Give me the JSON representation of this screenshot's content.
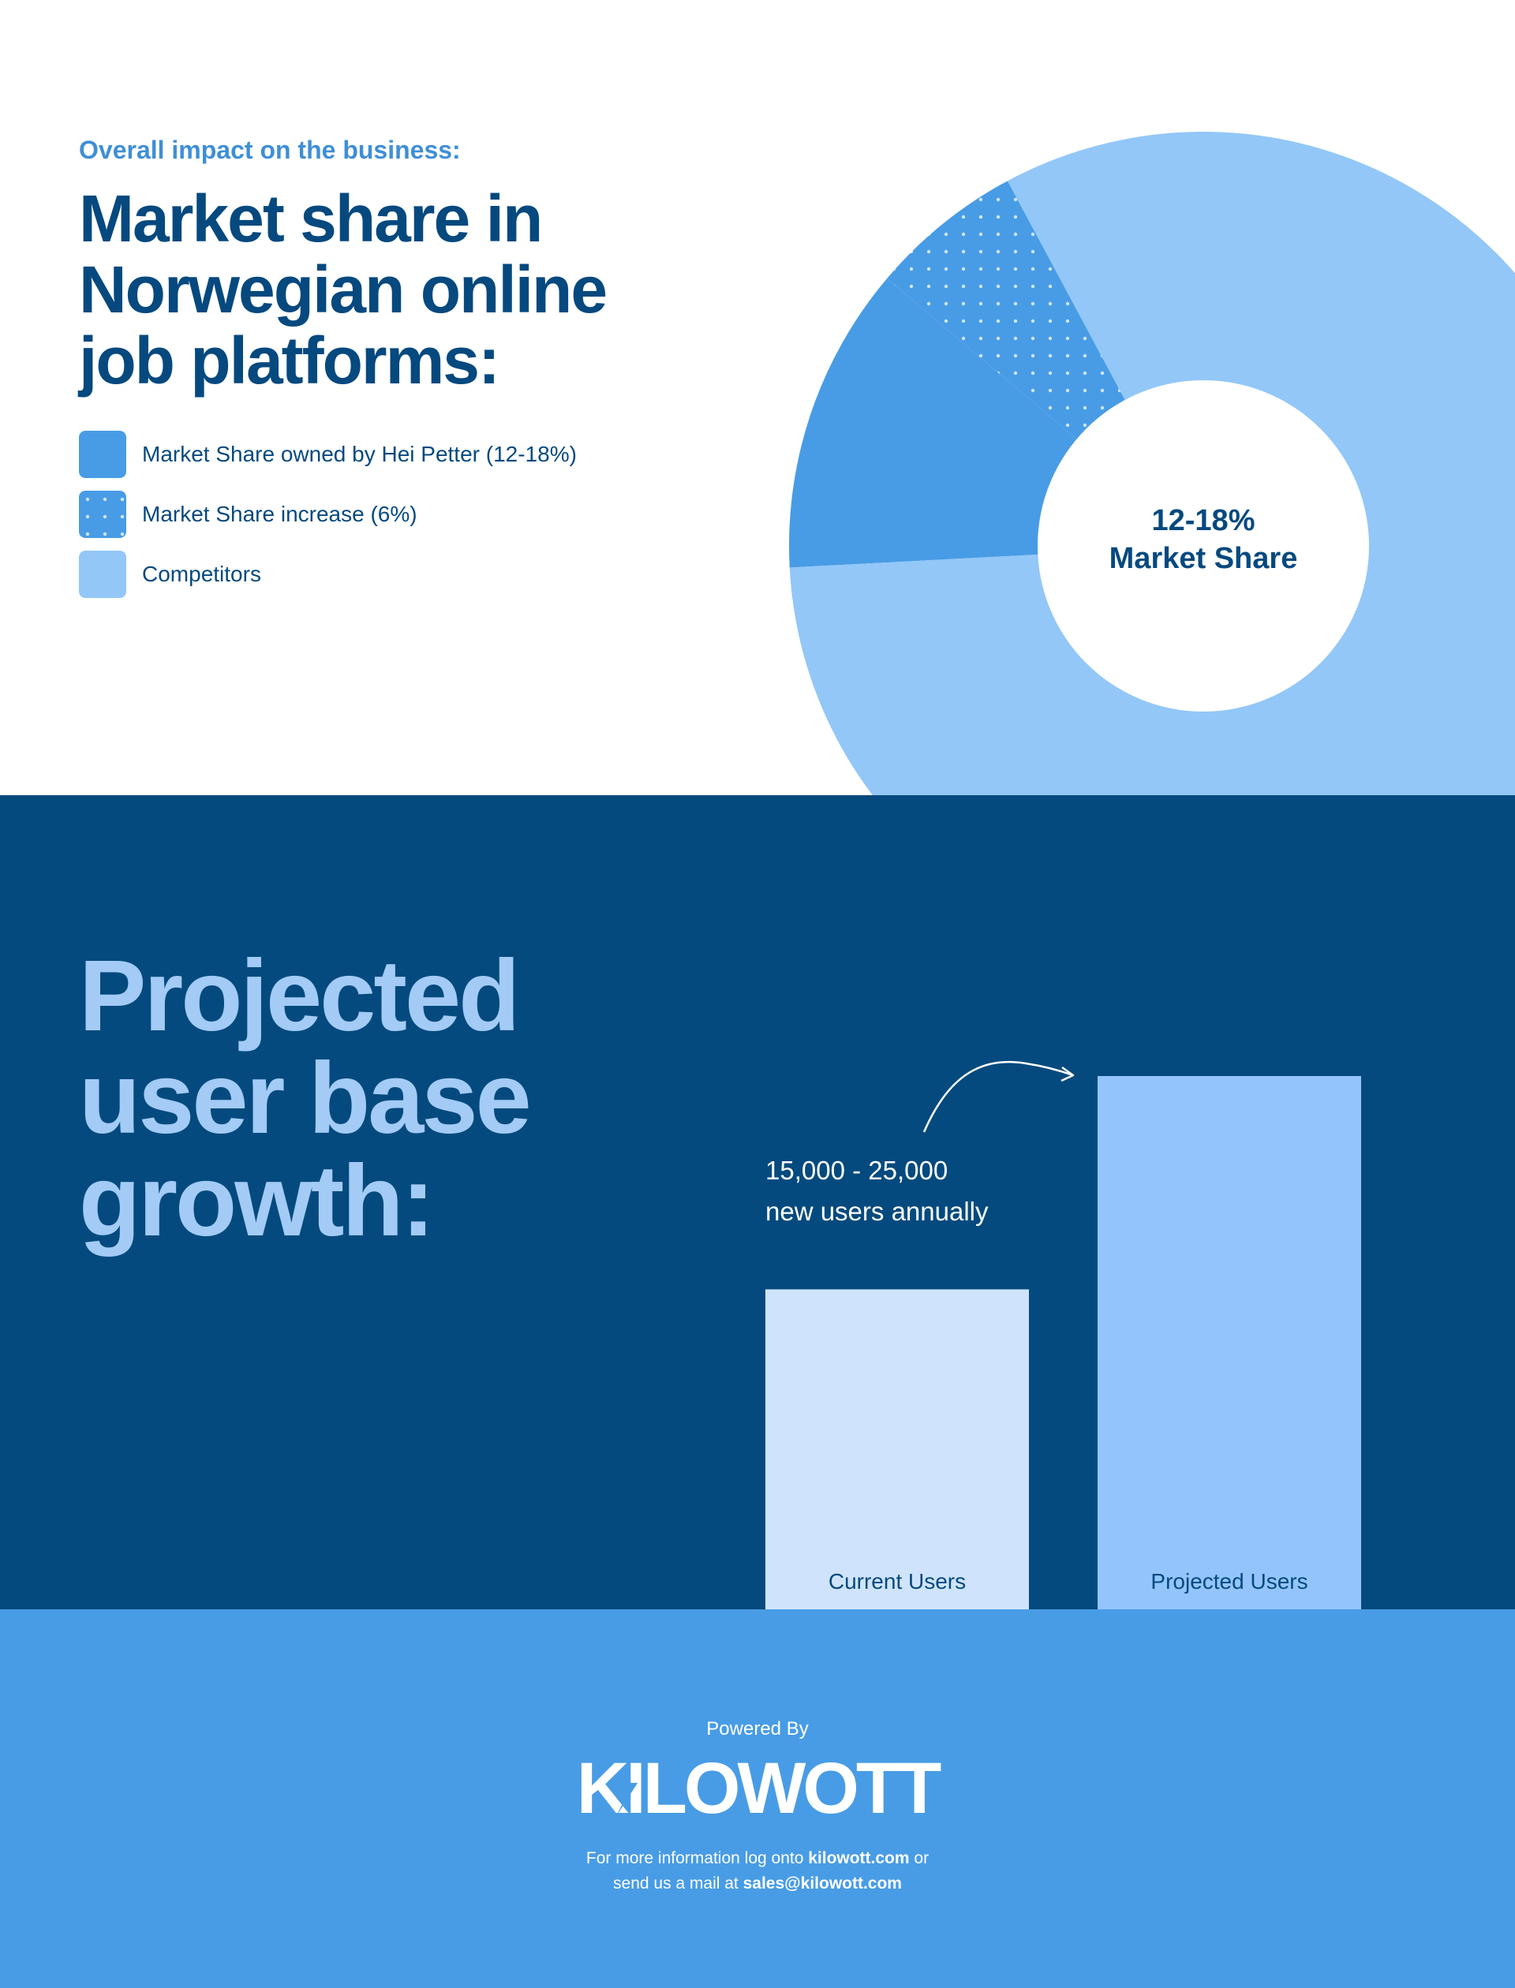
{
  "colors": {
    "navy": "#054a7e",
    "heading": "#06497f",
    "accent": "#3f8fd6",
    "owned": "#489ce5",
    "increase": "#489ce5",
    "competitors": "#92c7f8",
    "current_bar": "#cfe4fc",
    "projected_bar": "#93c5fc",
    "growth_title": "#a3cbf6",
    "footer_bg": "#489ce5"
  },
  "market": {
    "eyebrow": "Overall impact on the business:",
    "title": "Market share in Norwegian online job platforms:",
    "legend": [
      {
        "label": "Market Share owned by Hei Petter (12-18%)",
        "icon": "solid-swatch"
      },
      {
        "label": "Market Share increase (6%)",
        "icon": "dotted-swatch"
      },
      {
        "label": "Competitors",
        "icon": "solid-swatch"
      }
    ],
    "center_line1": "12-18%",
    "center_line2": "Market Share"
  },
  "growth": {
    "title": "Projected user base growth:",
    "annotation_line1": "15,000 - 25,000",
    "annotation_line2": "new users annually",
    "arrow_icon": "curved-arrow-icon"
  },
  "chart_data": [
    {
      "type": "pie",
      "labels": [
        "Market Share owned by Hei Petter (12-18%)",
        "Market Share increase (6%)",
        "Competitors"
      ],
      "values": [
        12,
        6,
        82
      ],
      "center_label": "12-18% Market Share"
    },
    {
      "type": "bar",
      "categories": [
        "Current Users",
        "Projected Users"
      ],
      "values": [
        60,
        100
      ]
    }
  ],
  "footer": {
    "powered_by": "Powered By",
    "logo_text": "KILOWOTT",
    "info_prefix": "For more information log onto ",
    "site": "kilowott.com",
    "info_mid": " or",
    "mail_prefix": "send us a mail at ",
    "email": "sales@kilowott.com"
  }
}
